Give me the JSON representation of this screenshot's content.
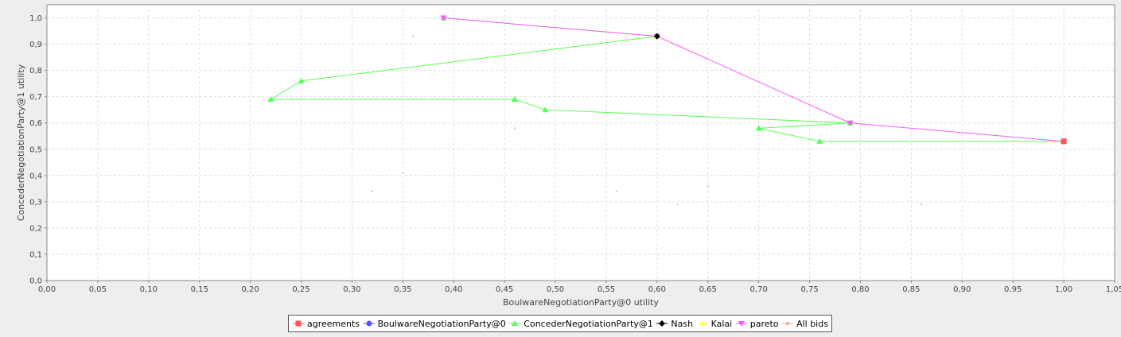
{
  "chart_data": {
    "type": "scatter",
    "xlabel": "BoulwareNegotiationParty@0 utility",
    "ylabel": "ConcederNegotiationParty@1 utility",
    "xlim": [
      0,
      1.05
    ],
    "ylim": [
      0,
      1.05
    ],
    "x_ticks": [
      "0,00",
      "0,05",
      "0,10",
      "0,15",
      "0,20",
      "0,25",
      "0,30",
      "0,35",
      "0,40",
      "0,45",
      "0,50",
      "0,55",
      "0,60",
      "0,65",
      "0,70",
      "0,75",
      "0,80",
      "0,85",
      "0,90",
      "0,95",
      "1,00",
      "1,05"
    ],
    "y_ticks": [
      "0,0",
      "0,1",
      "0,2",
      "0,3",
      "0,4",
      "0,5",
      "0,6",
      "0,7",
      "0,8",
      "0,9",
      "1,0"
    ],
    "grid": true,
    "legend_position": "bottom",
    "series": [
      {
        "name": "agreements",
        "color": "#ff5555",
        "marker": "square",
        "line": false,
        "points": [
          [
            1.0,
            0.53
          ]
        ]
      },
      {
        "name": "BoulwareNegotiationParty@0",
        "color": "#5555ff",
        "marker": "circle",
        "line": false,
        "points": []
      },
      {
        "name": "ConcederNegotiationParty@1",
        "color": "#55ff55",
        "marker": "triangle-up",
        "line": true,
        "points": [
          [
            0.39,
            1.0
          ],
          [
            0.6,
            0.93
          ],
          [
            0.25,
            0.76
          ],
          [
            0.22,
            0.69
          ],
          [
            0.46,
            0.69
          ],
          [
            0.49,
            0.65
          ],
          [
            0.79,
            0.6
          ],
          [
            0.7,
            0.58
          ],
          [
            0.76,
            0.53
          ],
          [
            1.0,
            0.53
          ]
        ]
      },
      {
        "name": "Nash",
        "color": "#000000",
        "marker": "diamond",
        "line": false,
        "points": [
          [
            0.6,
            0.93
          ]
        ]
      },
      {
        "name": "Kalai",
        "color": "#ffff55",
        "marker": "triangle-up",
        "line": false,
        "points": [
          [
            0.6,
            0.93
          ]
        ]
      },
      {
        "name": "pareto",
        "color": "#ff55ff",
        "marker": "triangle-down",
        "line": true,
        "points": [
          [
            0.39,
            1.0
          ],
          [
            0.6,
            0.93
          ],
          [
            0.79,
            0.6
          ],
          [
            1.0,
            0.53
          ]
        ]
      },
      {
        "name": "All bids",
        "color": "#ffaaaa",
        "marker": "dot",
        "line": false,
        "points": [
          [
            0.36,
            0.93
          ],
          [
            0.46,
            0.58
          ],
          [
            0.35,
            0.41
          ],
          [
            0.32,
            0.34
          ],
          [
            0.56,
            0.34
          ],
          [
            0.65,
            0.36
          ],
          [
            0.62,
            0.29
          ],
          [
            0.86,
            0.29
          ],
          [
            0.39,
            1.0
          ],
          [
            0.6,
            0.93
          ],
          [
            0.79,
            0.6
          ],
          [
            1.0,
            0.53
          ],
          [
            0.25,
            0.76
          ],
          [
            0.22,
            0.69
          ],
          [
            0.46,
            0.69
          ],
          [
            0.49,
            0.65
          ],
          [
            0.7,
            0.58
          ],
          [
            0.76,
            0.53
          ]
        ]
      }
    ]
  }
}
